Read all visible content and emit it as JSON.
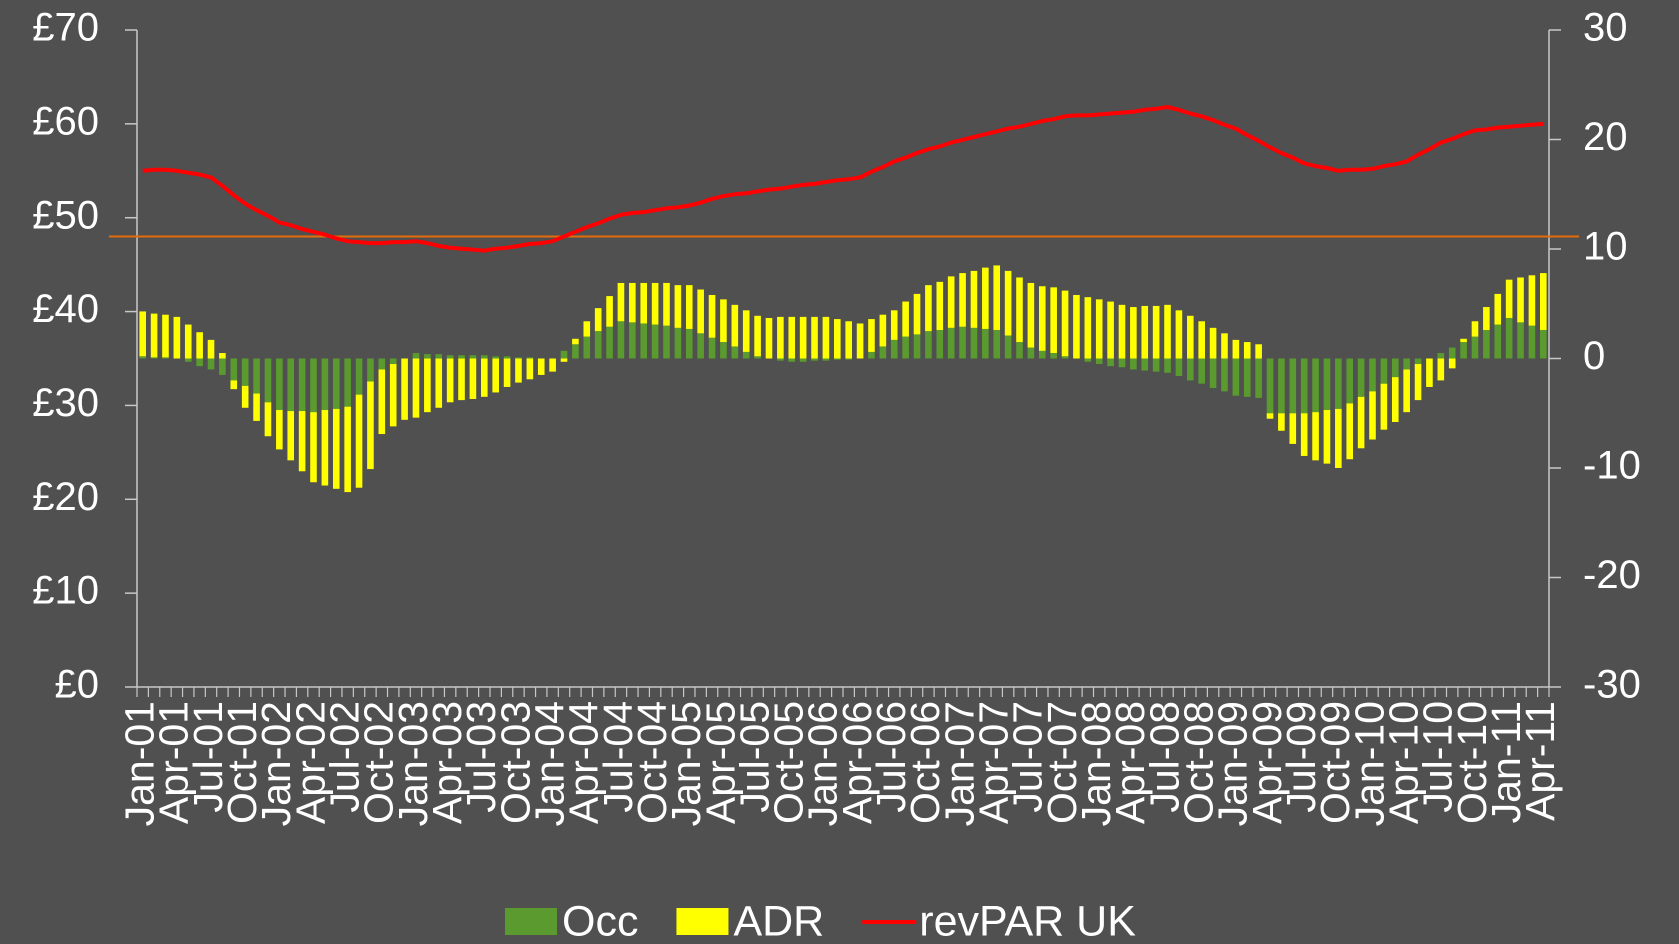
{
  "chart_data": {
    "type": "bar",
    "categories": [
      "Jan-01",
      null,
      null,
      "Apr-01",
      null,
      null,
      "Jul-01",
      null,
      null,
      "Oct-01",
      null,
      null,
      "Jan-02",
      null,
      null,
      "Apr-02",
      null,
      null,
      "Jul-02",
      null,
      null,
      "Oct-02",
      null,
      null,
      "Jan-03",
      null,
      null,
      "Apr-03",
      null,
      null,
      "Jul-03",
      null,
      null,
      "Oct-03",
      null,
      null,
      "Jan-04",
      null,
      null,
      "Apr-04",
      null,
      null,
      "Jul-04",
      null,
      null,
      "Oct-04",
      null,
      null,
      "Jan-05",
      null,
      null,
      "Apr-05",
      null,
      null,
      "Jul-05",
      null,
      null,
      "Oct-05",
      null,
      null,
      "Jan-06",
      null,
      null,
      "Apr-06",
      null,
      null,
      "Jul-06",
      null,
      null,
      "Oct-06",
      null,
      null,
      "Jan-07",
      null,
      null,
      "Apr-07",
      null,
      null,
      "Jul-07",
      null,
      null,
      "Oct-07",
      null,
      null,
      "Jan-08",
      null,
      null,
      "Apr-08",
      null,
      null,
      "Jul-08",
      null,
      null,
      "Oct-08",
      null,
      null,
      "Jan-09",
      null,
      null,
      "Apr-09",
      null,
      null,
      "Jul-09",
      null,
      null,
      "Oct-09",
      null,
      null,
      "Jan-10",
      null,
      null,
      "Apr-10",
      null,
      null,
      "Jul-10",
      null,
      null,
      "Oct-10",
      null,
      null,
      "Jan-11",
      null,
      null,
      "Apr-11"
    ],
    "series": [
      {
        "name": "Occ",
        "type": "bar",
        "axis": "y2",
        "color": "#5a9a2e",
        "values": [
          0.2,
          0.1,
          0.1,
          0,
          -0.3,
          -0.7,
          -1,
          -1.5,
          -2,
          -2.5,
          -3.2,
          -4,
          -4.7,
          -4.8,
          -4.8,
          -4.9,
          -4.7,
          -4.6,
          -4.4,
          -3.3,
          -2.1,
          -1,
          -0.5,
          0,
          0.5,
          0.4,
          0.4,
          0.3,
          0.3,
          0.3,
          0.3,
          0.2,
          0.2,
          0.1,
          0.1,
          0,
          0,
          0.7,
          1.3,
          2,
          2.5,
          2.9,
          3.4,
          3.3,
          3.2,
          3.1,
          3,
          2.8,
          2.7,
          2.3,
          1.9,
          1.5,
          1.1,
          0.6,
          0.2,
          0,
          -0.2,
          -0.3,
          -0.3,
          -0.2,
          -0.2,
          -0.1,
          -0.1,
          0,
          0.6,
          1.1,
          1.7,
          2,
          2.2,
          2.5,
          2.6,
          2.8,
          2.9,
          2.8,
          2.7,
          2.6,
          2.1,
          1.5,
          1,
          0.7,
          0.5,
          0.2,
          0,
          -0.3,
          -0.5,
          -0.7,
          -0.8,
          -1,
          -1.1,
          -1.2,
          -1.3,
          -1.6,
          -2,
          -2.3,
          -2.7,
          -3,
          -3.4,
          -3.5,
          -3.6,
          -5,
          -5,
          -5,
          -5,
          -4.9,
          -4.7,
          -4.6,
          -4.1,
          -3.5,
          -3,
          -2.3,
          -1.7,
          -1,
          -0.5,
          0,
          0.5,
          1,
          1.5,
          2,
          2.6,
          3.1,
          3.7,
          3.3,
          3,
          2.6
        ]
      },
      {
        "name": "ADR",
        "type": "bar",
        "axis": "y2",
        "color": "#ffff00",
        "values": [
          4.1,
          4,
          3.9,
          3.8,
          3.1,
          2.4,
          1.7,
          0.5,
          -0.8,
          -2,
          -2.5,
          -3.1,
          -3.6,
          -4.5,
          -5.5,
          -6.4,
          -6.9,
          -7.3,
          -7.8,
          -8.5,
          -8,
          -5.9,
          -5.7,
          -5.6,
          -5.4,
          -4.9,
          -4.5,
          -4,
          -3.8,
          -3.7,
          -3.5,
          -3.1,
          -2.6,
          -2.2,
          -1.9,
          -1.5,
          -1.2,
          -0.3,
          0.5,
          1.4,
          2.1,
          2.8,
          3.5,
          3.6,
          3.7,
          3.8,
          3.9,
          3.9,
          4,
          4,
          3.9,
          3.9,
          3.8,
          3.8,
          3.7,
          3.7,
          3.8,
          3.8,
          3.8,
          3.8,
          3.8,
          3.6,
          3.4,
          3.2,
          3,
          2.9,
          2.7,
          3.2,
          3.7,
          4.2,
          4.4,
          4.7,
          4.9,
          5.2,
          5.6,
          5.9,
          5.9,
          5.9,
          5.9,
          5.9,
          6,
          6,
          5.8,
          5.6,
          5.4,
          5.2,
          4.9,
          4.7,
          4.8,
          4.8,
          4.9,
          4.4,
          3.9,
          3.4,
          2.8,
          2.3,
          1.7,
          1.5,
          1.3,
          -0.5,
          -1.6,
          -2.8,
          -3.9,
          -4.4,
          -4.9,
          -5.4,
          -5.1,
          -4.7,
          -4.4,
          -4.2,
          -4.1,
          -3.9,
          -3.3,
          -2.6,
          -2,
          -0.9,
          0.3,
          1.4,
          2.1,
          2.8,
          3.5,
          4.1,
          4.6,
          5.2
        ]
      },
      {
        "name": "revPAR UK",
        "type": "line",
        "color": "#ff0000",
        "values": [
          55,
          55.1,
          55.1,
          55,
          54.8,
          54.6,
          54.3,
          53.4,
          52.4,
          51.5,
          50.8,
          50.2,
          49.5,
          49.2,
          48.8,
          48.5,
          48.2,
          47.8,
          47.5,
          47.4,
          47.3,
          47.3,
          47.4,
          47.4,
          47.5,
          47.3,
          47,
          46.8,
          46.7,
          46.6,
          46.5,
          46.7,
          46.8,
          47,
          47.2,
          47.3,
          47.5,
          48,
          48.5,
          49,
          49.4,
          49.9,
          50.3,
          50.5,
          50.6,
          50.8,
          51,
          51.1,
          51.3,
          51.6,
          52,
          52.3,
          52.5,
          52.6,
          52.8,
          53,
          53.1,
          53.3,
          53.5,
          53.6,
          53.8,
          54,
          54.1,
          54.3,
          54.9,
          55.4,
          56,
          56.4,
          56.9,
          57.3,
          57.6,
          58,
          58.3,
          58.6,
          58.9,
          59.2,
          59.5,
          59.7,
          60,
          60.3,
          60.5,
          60.8,
          60.9,
          60.9,
          61,
          61.1,
          61.2,
          61.3,
          61.5,
          61.6,
          61.8,
          61.5,
          61.1,
          60.8,
          60.4,
          59.9,
          59.5,
          58.8,
          58.2,
          57.5,
          56.9,
          56.4,
          55.8,
          55.5,
          55.3,
          55,
          55.1,
          55.1,
          55.2,
          55.5,
          55.7,
          56,
          56.7,
          57.3,
          58,
          58.4,
          58.9,
          59.3,
          59.4,
          59.6,
          59.7,
          59.8,
          59.9,
          60
        ]
      }
    ],
    "ylim": [
      0,
      70
    ],
    "yticks": [
      {
        "value": 0,
        "label": "£0"
      },
      {
        "value": 10,
        "label": "£10"
      },
      {
        "value": 20,
        "label": "£20"
      },
      {
        "value": 30,
        "label": "£30"
      },
      {
        "value": 40,
        "label": "£40"
      },
      {
        "value": 50,
        "label": "£50"
      },
      {
        "value": 60,
        "label": "£60"
      },
      {
        "value": 70,
        "label": "£70"
      }
    ],
    "y2lim": [
      -30,
      30
    ],
    "y2ticks": [
      -30,
      -20,
      -10,
      0,
      10,
      20,
      30
    ],
    "reference_line": {
      "value": 48,
      "color": "#e46c0a"
    },
    "legend": "bottom",
    "grid": false
  }
}
